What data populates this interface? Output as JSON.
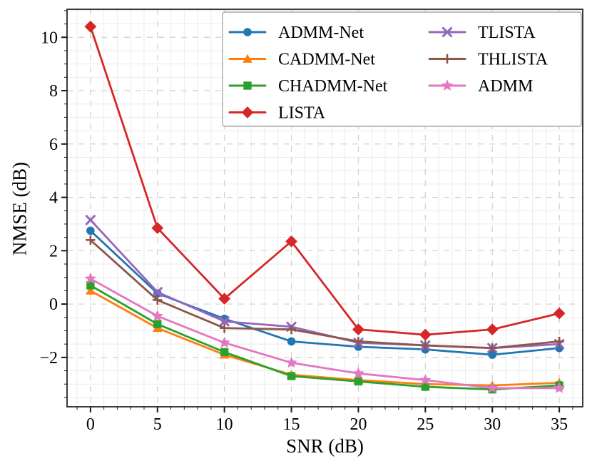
{
  "figure": {
    "background": "#ffffff",
    "spine_color": "#262626",
    "tick_color": "#1a1a1a",
    "text_color": "#000000"
  },
  "chart_data": {
    "type": "line",
    "title": "",
    "xlabel": "SNR (dB)",
    "ylabel": "NMSE (dB)",
    "x": [
      0,
      5,
      10,
      15,
      20,
      25,
      30,
      35
    ],
    "xticks": [
      0,
      5,
      10,
      15,
      20,
      25,
      30,
      35
    ],
    "yticks": [
      -2,
      0,
      2,
      4,
      6,
      8,
      10
    ],
    "xlim": [
      -1.75,
      36.75
    ],
    "ylim": [
      -3.85,
      11.05
    ],
    "grid": {
      "major_style": "dashed",
      "major_color": "#d0d0d0",
      "minor_style": "solid",
      "minor_color": "#ebebeb",
      "minor_x_step": 1,
      "minor_y_step": 0.5
    },
    "legend_position": "upper right, inside axes, 2 columns",
    "series": [
      {
        "name": "ADMM-Net",
        "color": "#1f77b4",
        "marker": "circle",
        "values": [
          2.75,
          0.4,
          -0.55,
          -1.4,
          -1.6,
          -1.7,
          -1.9,
          -1.65
        ]
      },
      {
        "name": "CADMM-Net",
        "color": "#ff7f0e",
        "marker": "triangle",
        "values": [
          0.5,
          -0.9,
          -1.9,
          -2.65,
          -2.85,
          -3.0,
          -3.05,
          -2.95
        ]
      },
      {
        "name": "CHADMM-Net",
        "color": "#2ca02c",
        "marker": "square",
        "values": [
          0.7,
          -0.75,
          -1.8,
          -2.7,
          -2.9,
          -3.1,
          -3.2,
          -3.05
        ]
      },
      {
        "name": "LISTA",
        "color": "#d62728",
        "marker": "diamond",
        "values": [
          10.4,
          2.85,
          0.2,
          2.35,
          -0.95,
          -1.15,
          -0.95,
          -0.35
        ]
      },
      {
        "name": "TLISTA",
        "color": "#9467bd",
        "marker": "x",
        "values": [
          3.15,
          0.45,
          -0.65,
          -0.85,
          -1.45,
          -1.55,
          -1.65,
          -1.5
        ]
      },
      {
        "name": "THLISTA",
        "color": "#8c564b",
        "marker": "plus",
        "values": [
          2.4,
          0.15,
          -0.9,
          -0.95,
          -1.4,
          -1.55,
          -1.65,
          -1.4
        ]
      },
      {
        "name": "ADMM",
        "color": "#e377c2",
        "marker": "star",
        "values": [
          0.95,
          -0.45,
          -1.45,
          -2.2,
          -2.6,
          -2.85,
          -3.15,
          -3.15
        ]
      }
    ]
  },
  "legend": {
    "columns": [
      [
        "ADMM-Net",
        "CADMM-Net",
        "CHADMM-Net",
        "LISTA"
      ],
      [
        "TLISTA",
        "THLISTA",
        "ADMM"
      ]
    ],
    "background": "#ffffff",
    "border_color": "#aaaaaa"
  }
}
